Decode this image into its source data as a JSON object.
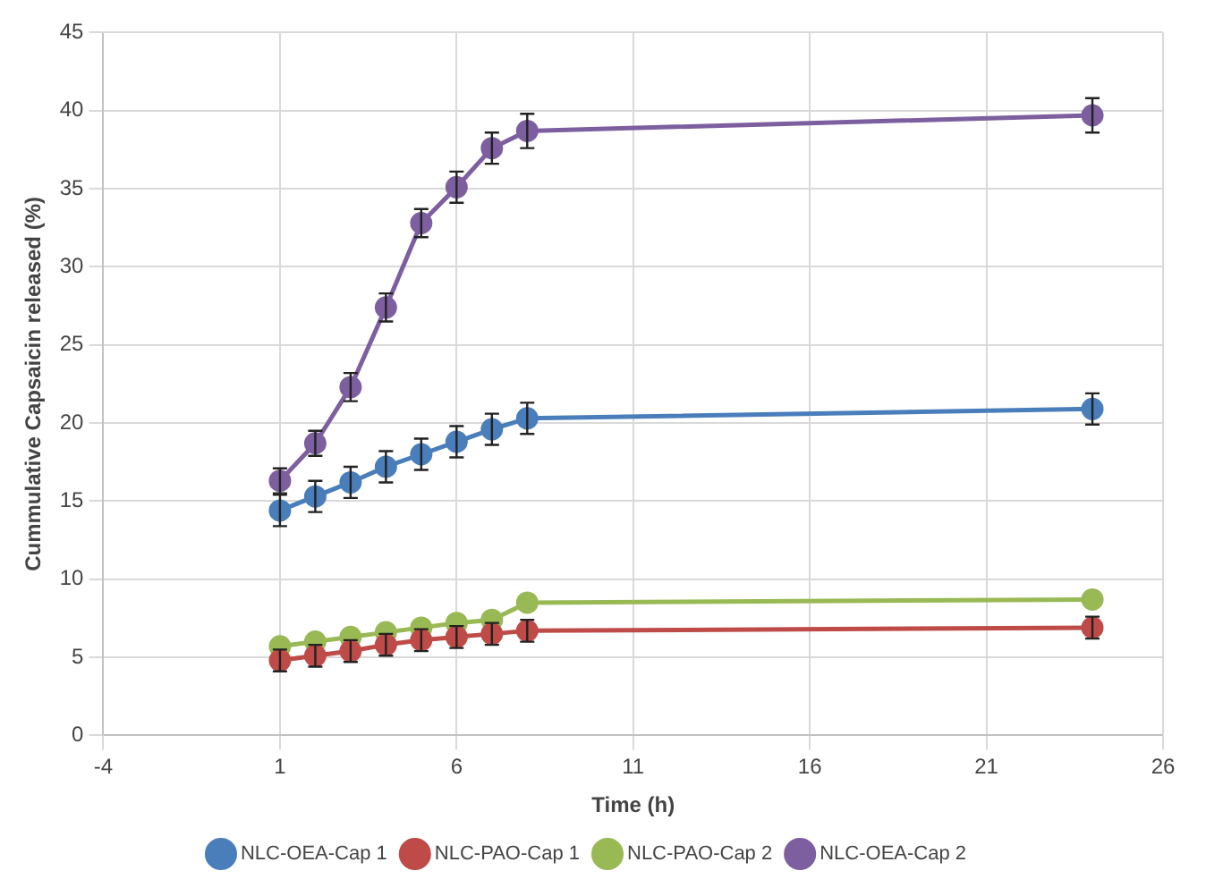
{
  "chart_data": {
    "type": "line",
    "xlabel": "Time (h)",
    "ylabel": "Cummulative Capsaicin released (%)",
    "x": [
      1,
      2,
      3,
      4,
      5,
      6,
      7,
      8,
      24
    ],
    "series": [
      {
        "name": "NLC-OEA-Cap 1",
        "color": "#4a7ebb",
        "values": [
          14.4,
          15.3,
          16.2,
          17.2,
          18.0,
          18.8,
          19.6,
          20.3,
          20.9
        ],
        "errors": [
          1,
          1,
          1,
          1,
          1,
          1,
          1,
          1,
          1
        ]
      },
      {
        "name": "NLC-PAO-Cap 1",
        "color": "#be4b48",
        "values": [
          4.8,
          5.1,
          5.4,
          5.8,
          6.1,
          6.3,
          6.5,
          6.7,
          6.9
        ],
        "errors": [
          0.7,
          0.7,
          0.7,
          0.7,
          0.7,
          0.7,
          0.7,
          0.7,
          0.7
        ]
      },
      {
        "name": "NLC-PAO-Cap 2",
        "color": "#98b954",
        "values": [
          5.7,
          6.0,
          6.3,
          6.6,
          6.9,
          7.2,
          7.4,
          8.5,
          8.7
        ]
      },
      {
        "name": "NLC-OEA-Cap 2",
        "color": "#7d5fa0",
        "values": [
          16.3,
          18.7,
          22.3,
          27.4,
          32.8,
          35.1,
          37.6,
          38.7,
          39.7
        ],
        "errors": [
          0.8,
          0.8,
          0.9,
          0.9,
          0.9,
          1,
          1,
          1.1,
          1.1
        ]
      }
    ],
    "xlim": [
      -4,
      26
    ],
    "xticks": [
      -4,
      1,
      6,
      11,
      16,
      21,
      26
    ],
    "ylim": [
      0,
      45
    ],
    "yticks": [
      0,
      5,
      10,
      15,
      20,
      25,
      30,
      35,
      40,
      45
    ],
    "grid": true,
    "legend": "bottom",
    "marker": "circle",
    "line_style": "solid"
  }
}
